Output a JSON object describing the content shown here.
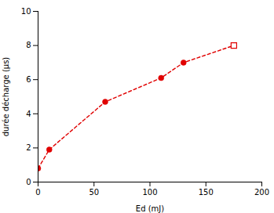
{
  "chart_data": {
    "type": "line",
    "xlabel": "Ed (mJ)",
    "ylabel": "durée décharge (μs)",
    "series": [
      {
        "type": "line",
        "line_style": "dashed",
        "color": "#e00000",
        "x": [
          0,
          10,
          60,
          110,
          130,
          175
        ],
        "values": [
          0.8,
          1.9,
          4.7,
          6.1,
          7.0,
          8.0
        ]
      },
      {
        "type": "scatter",
        "marker": "circle",
        "color": "#e00000",
        "x": [
          0,
          10,
          60,
          110,
          130
        ],
        "values": [
          0.8,
          1.9,
          4.7,
          6.1,
          7.0
        ]
      },
      {
        "type": "scatter",
        "marker": "open_square",
        "color": "#e00000",
        "x": [
          175
        ],
        "values": [
          8.0
        ]
      }
    ],
    "xlim": [
      0,
      200
    ],
    "xticks": [
      0,
      50,
      100,
      150,
      200
    ],
    "ylim": [
      0,
      10
    ],
    "yticks": [
      0,
      2,
      4,
      6,
      8,
      10
    ],
    "grid": false
  }
}
